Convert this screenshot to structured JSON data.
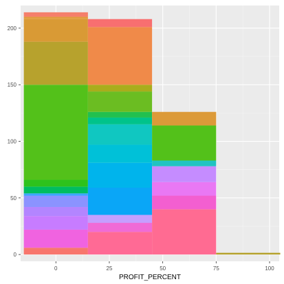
{
  "chart_data": {
    "type": "bar",
    "stacked": true,
    "title": "",
    "xlabel": "PROFIT_PERCENT",
    "ylabel": "",
    "x_ticks": [
      0,
      25,
      50,
      75,
      100
    ],
    "y_ticks": [
      0,
      50,
      100,
      150,
      200
    ],
    "xlim": [
      -16.5,
      104.5
    ],
    "ylim": [
      -6,
      220
    ],
    "grid": true,
    "legend": "none",
    "bins": [
      {
        "x_start": -15,
        "x_end": 15,
        "total": 214,
        "segments": [
          {
            "value": 6,
            "color": "#f8766d"
          },
          {
            "value": 16,
            "color": "#f063e0"
          },
          {
            "value": 12,
            "color": "#c77cff"
          },
          {
            "value": 8,
            "color": "#b385ff"
          },
          {
            "value": 10,
            "color": "#8b93ff"
          },
          {
            "value": 2,
            "color": "#3aa7ff"
          },
          {
            "value": 6,
            "color": "#00bd60"
          },
          {
            "value": 6,
            "color": "#2ec21c"
          },
          {
            "value": 84,
            "color": "#53c11a"
          },
          {
            "value": 38,
            "color": "#b7a22d"
          },
          {
            "value": 20,
            "color": "#d99a35"
          },
          {
            "value": 2,
            "color": "#e19d3d"
          },
          {
            "value": 4,
            "color": "#f57f6b"
          }
        ]
      },
      {
        "x_start": 15,
        "x_end": 45,
        "total": 208,
        "segments": [
          {
            "value": 20,
            "color": "#ff6a95"
          },
          {
            "value": 8,
            "color": "#f06bd6"
          },
          {
            "value": 7,
            "color": "#c59fff"
          },
          {
            "value": 24,
            "color": "#0aa6f7"
          },
          {
            "value": 22,
            "color": "#00b4ec"
          },
          {
            "value": 16,
            "color": "#00c1d8"
          },
          {
            "value": 18,
            "color": "#10c7c1"
          },
          {
            "value": 6,
            "color": "#00c38a"
          },
          {
            "value": 5,
            "color": "#22c04f"
          },
          {
            "value": 18,
            "color": "#6bbd22"
          },
          {
            "value": 6,
            "color": "#a9ad1c"
          },
          {
            "value": 51,
            "color": "#f08a49"
          },
          {
            "value": 7,
            "color": "#f86f70"
          }
        ]
      },
      {
        "x_start": 45,
        "x_end": 75,
        "total": 126,
        "segments": [
          {
            "value": 40,
            "color": "#ff6b92"
          },
          {
            "value": 12,
            "color": "#f35fd0"
          },
          {
            "value": 12,
            "color": "#e978f4"
          },
          {
            "value": 14,
            "color": "#c58cff"
          },
          {
            "value": 5,
            "color": "#21c3c2"
          },
          {
            "value": 31,
            "color": "#53c11a"
          },
          {
            "value": 12,
            "color": "#dc9a39"
          }
        ]
      },
      {
        "x_start": 75,
        "x_end": 105,
        "total": 1.5,
        "segments": [
          {
            "value": 1.5,
            "color": "#b5a12b"
          }
        ]
      }
    ]
  }
}
